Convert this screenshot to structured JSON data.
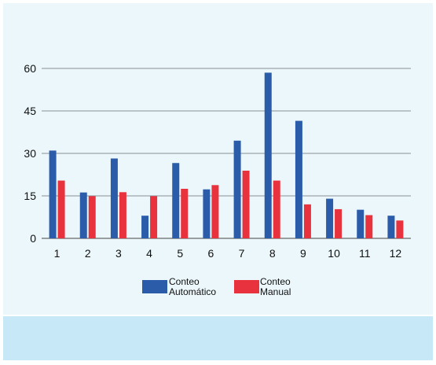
{
  "chart_data": {
    "type": "bar",
    "title": "",
    "xlabel": "",
    "ylabel": "",
    "categories": [
      "1",
      "2",
      "3",
      "4",
      "5",
      "6",
      "7",
      "8",
      "9",
      "10",
      "11",
      "12"
    ],
    "series": [
      {
        "name": "Conteo Automático",
        "color": "#2a5caa",
        "values": [
          31,
          16.2,
          28.2,
          8,
          26.6,
          17.3,
          34.5,
          58.5,
          41.5,
          14,
          10.1,
          8
        ]
      },
      {
        "name": "Conteo Manual",
        "color": "#e8323d",
        "values": [
          20.4,
          14.9,
          16.3,
          14.9,
          17.5,
          18.8,
          23.9,
          20.4,
          12,
          10.3,
          8.2,
          6.3
        ]
      }
    ],
    "ylim": [
      0,
      60
    ],
    "yticks": [
      0,
      15,
      30,
      45,
      60
    ],
    "grid": true,
    "legend_position": "bottom-center",
    "legend": [
      {
        "line1": "Conteo",
        "line2": "Automático",
        "color": "#2a5caa"
      },
      {
        "line1": "Conteo",
        "line2": "Manual",
        "color": "#e8323d"
      }
    ]
  }
}
